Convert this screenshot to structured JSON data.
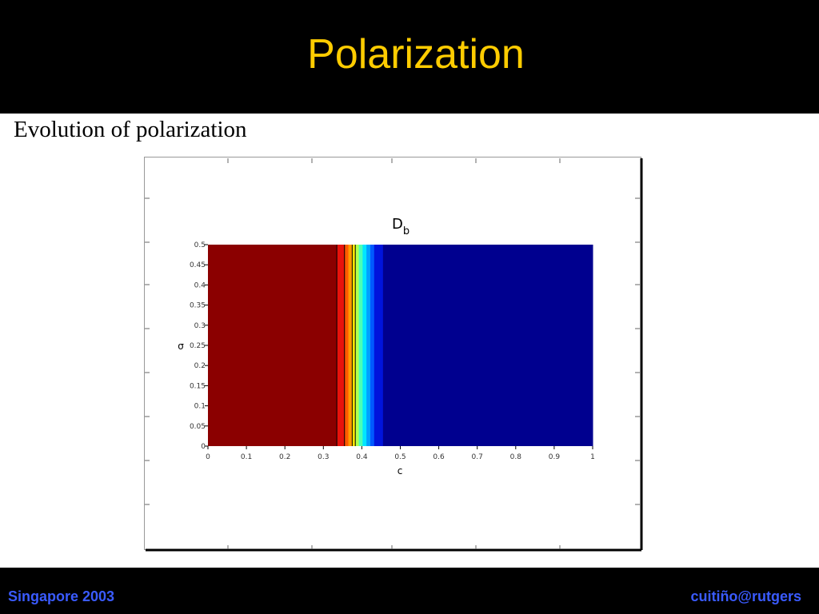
{
  "slide": {
    "title": "Polarization",
    "subtitle": "Evolution of polarization"
  },
  "footer": {
    "left": "Singapore 2003",
    "right": "cuitiño@rutgers"
  },
  "colors": {
    "title": "#ffcc00",
    "footer_text": "#3a5bff",
    "background": "#000000"
  },
  "chart_data": {
    "type": "heatmap",
    "title": "D",
    "title_subscript": "b",
    "xlabel": "c",
    "ylabel": "σ",
    "xlim": [
      0,
      1
    ],
    "ylim": [
      0,
      0.5
    ],
    "x_ticks": [
      "0",
      "0.1",
      "0.2",
      "0.3",
      "0.4",
      "0.5",
      "0.6",
      "0.7",
      "0.8",
      "0.9",
      "1"
    ],
    "y_ticks": [
      "0",
      "0.05",
      "0.1",
      "0.15",
      "0.2",
      "0.25",
      "0.3",
      "0.35",
      "0.4",
      "0.45",
      "0.5"
    ],
    "bands": [
      {
        "x0": 0.0,
        "x1": 0.335,
        "color": "#8b0000"
      },
      {
        "x0": 0.335,
        "x1": 0.355,
        "color": "#e8120c"
      },
      {
        "x0": 0.355,
        "x1": 0.365,
        "color": "#ff5a00"
      },
      {
        "x0": 0.365,
        "x1": 0.375,
        "color": "#ff9a00"
      },
      {
        "x0": 0.375,
        "x1": 0.383,
        "color": "#ffe600"
      },
      {
        "x0": 0.383,
        "x1": 0.392,
        "color": "#b4ff4c"
      },
      {
        "x0": 0.392,
        "x1": 0.402,
        "color": "#4cffb4"
      },
      {
        "x0": 0.402,
        "x1": 0.412,
        "color": "#00e6ff"
      },
      {
        "x0": 0.412,
        "x1": 0.422,
        "color": "#00a0ff"
      },
      {
        "x0": 0.422,
        "x1": 0.432,
        "color": "#005aff"
      },
      {
        "x0": 0.432,
        "x1": 0.455,
        "color": "#0014dc"
      },
      {
        "x0": 0.455,
        "x1": 1.0,
        "color": "#00008f"
      }
    ],
    "contour_lines": [
      0.335,
      0.355,
      0.375,
      0.383
    ]
  }
}
